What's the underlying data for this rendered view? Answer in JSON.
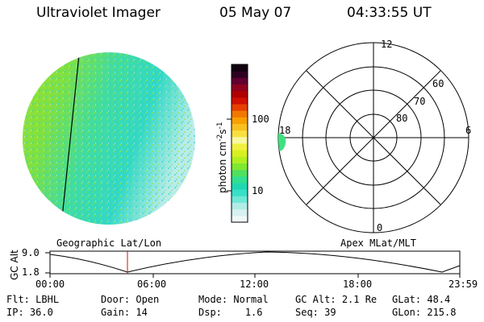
{
  "header": {
    "instrument": "Ultraviolet Imager",
    "date": "05 May 07",
    "time": "04:33:55 UT"
  },
  "image_panel": {
    "caption": "Geographic Lat/Lon"
  },
  "colorbar": {
    "label": "photon cm",
    "label_sup1": "-2",
    "label_mid": "s",
    "label_sup2": "-1",
    "ticks": [
      "100",
      "10"
    ],
    "colors": [
      "#f0f8f8",
      "#d8f0f0",
      "#b0ece8",
      "#70e8d8",
      "#38e0c8",
      "#20d8b0",
      "#30e090",
      "#50e060",
      "#80e830",
      "#b0f020",
      "#d8f020",
      "#f0f040",
      "#f8f8a0",
      "#f8e040",
      "#f8c020",
      "#f8a000",
      "#f07800",
      "#e84000",
      "#d01000",
      "#b00000",
      "#900020",
      "#600030",
      "#300020",
      "#100010"
    ]
  },
  "polar": {
    "labels": {
      "top": "12",
      "bottom": "0",
      "left": "18",
      "right": "6"
    },
    "lat_labels": [
      "60",
      "70",
      "80"
    ],
    "caption": "Apex MLat/MLT"
  },
  "altitude_plot": {
    "ylabel": "GC Alt",
    "yticks": [
      "9.0",
      "1.8"
    ],
    "xticks": [
      "00:00",
      "06:00",
      "12:00",
      "18:00",
      "23:59"
    ]
  },
  "info": {
    "row1": [
      {
        "label": "Flt:",
        "value": "LBHL"
      },
      {
        "label": "Door:",
        "value": "Open"
      },
      {
        "label": "Mode:",
        "value": "Normal"
      },
      {
        "label": "GC Alt:",
        "value": "2.1 Re"
      },
      {
        "label": "GLat:",
        "value": "48.4"
      }
    ],
    "row2": [
      {
        "label": "IP:",
        "value": "36.0"
      },
      {
        "label": "Gain:",
        "value": "14"
      },
      {
        "label": "Dsp:",
        "value": "1.6"
      },
      {
        "label": "Seq:",
        "value": "39"
      },
      {
        "label": "GLon:",
        "value": "215.8"
      }
    ]
  }
}
